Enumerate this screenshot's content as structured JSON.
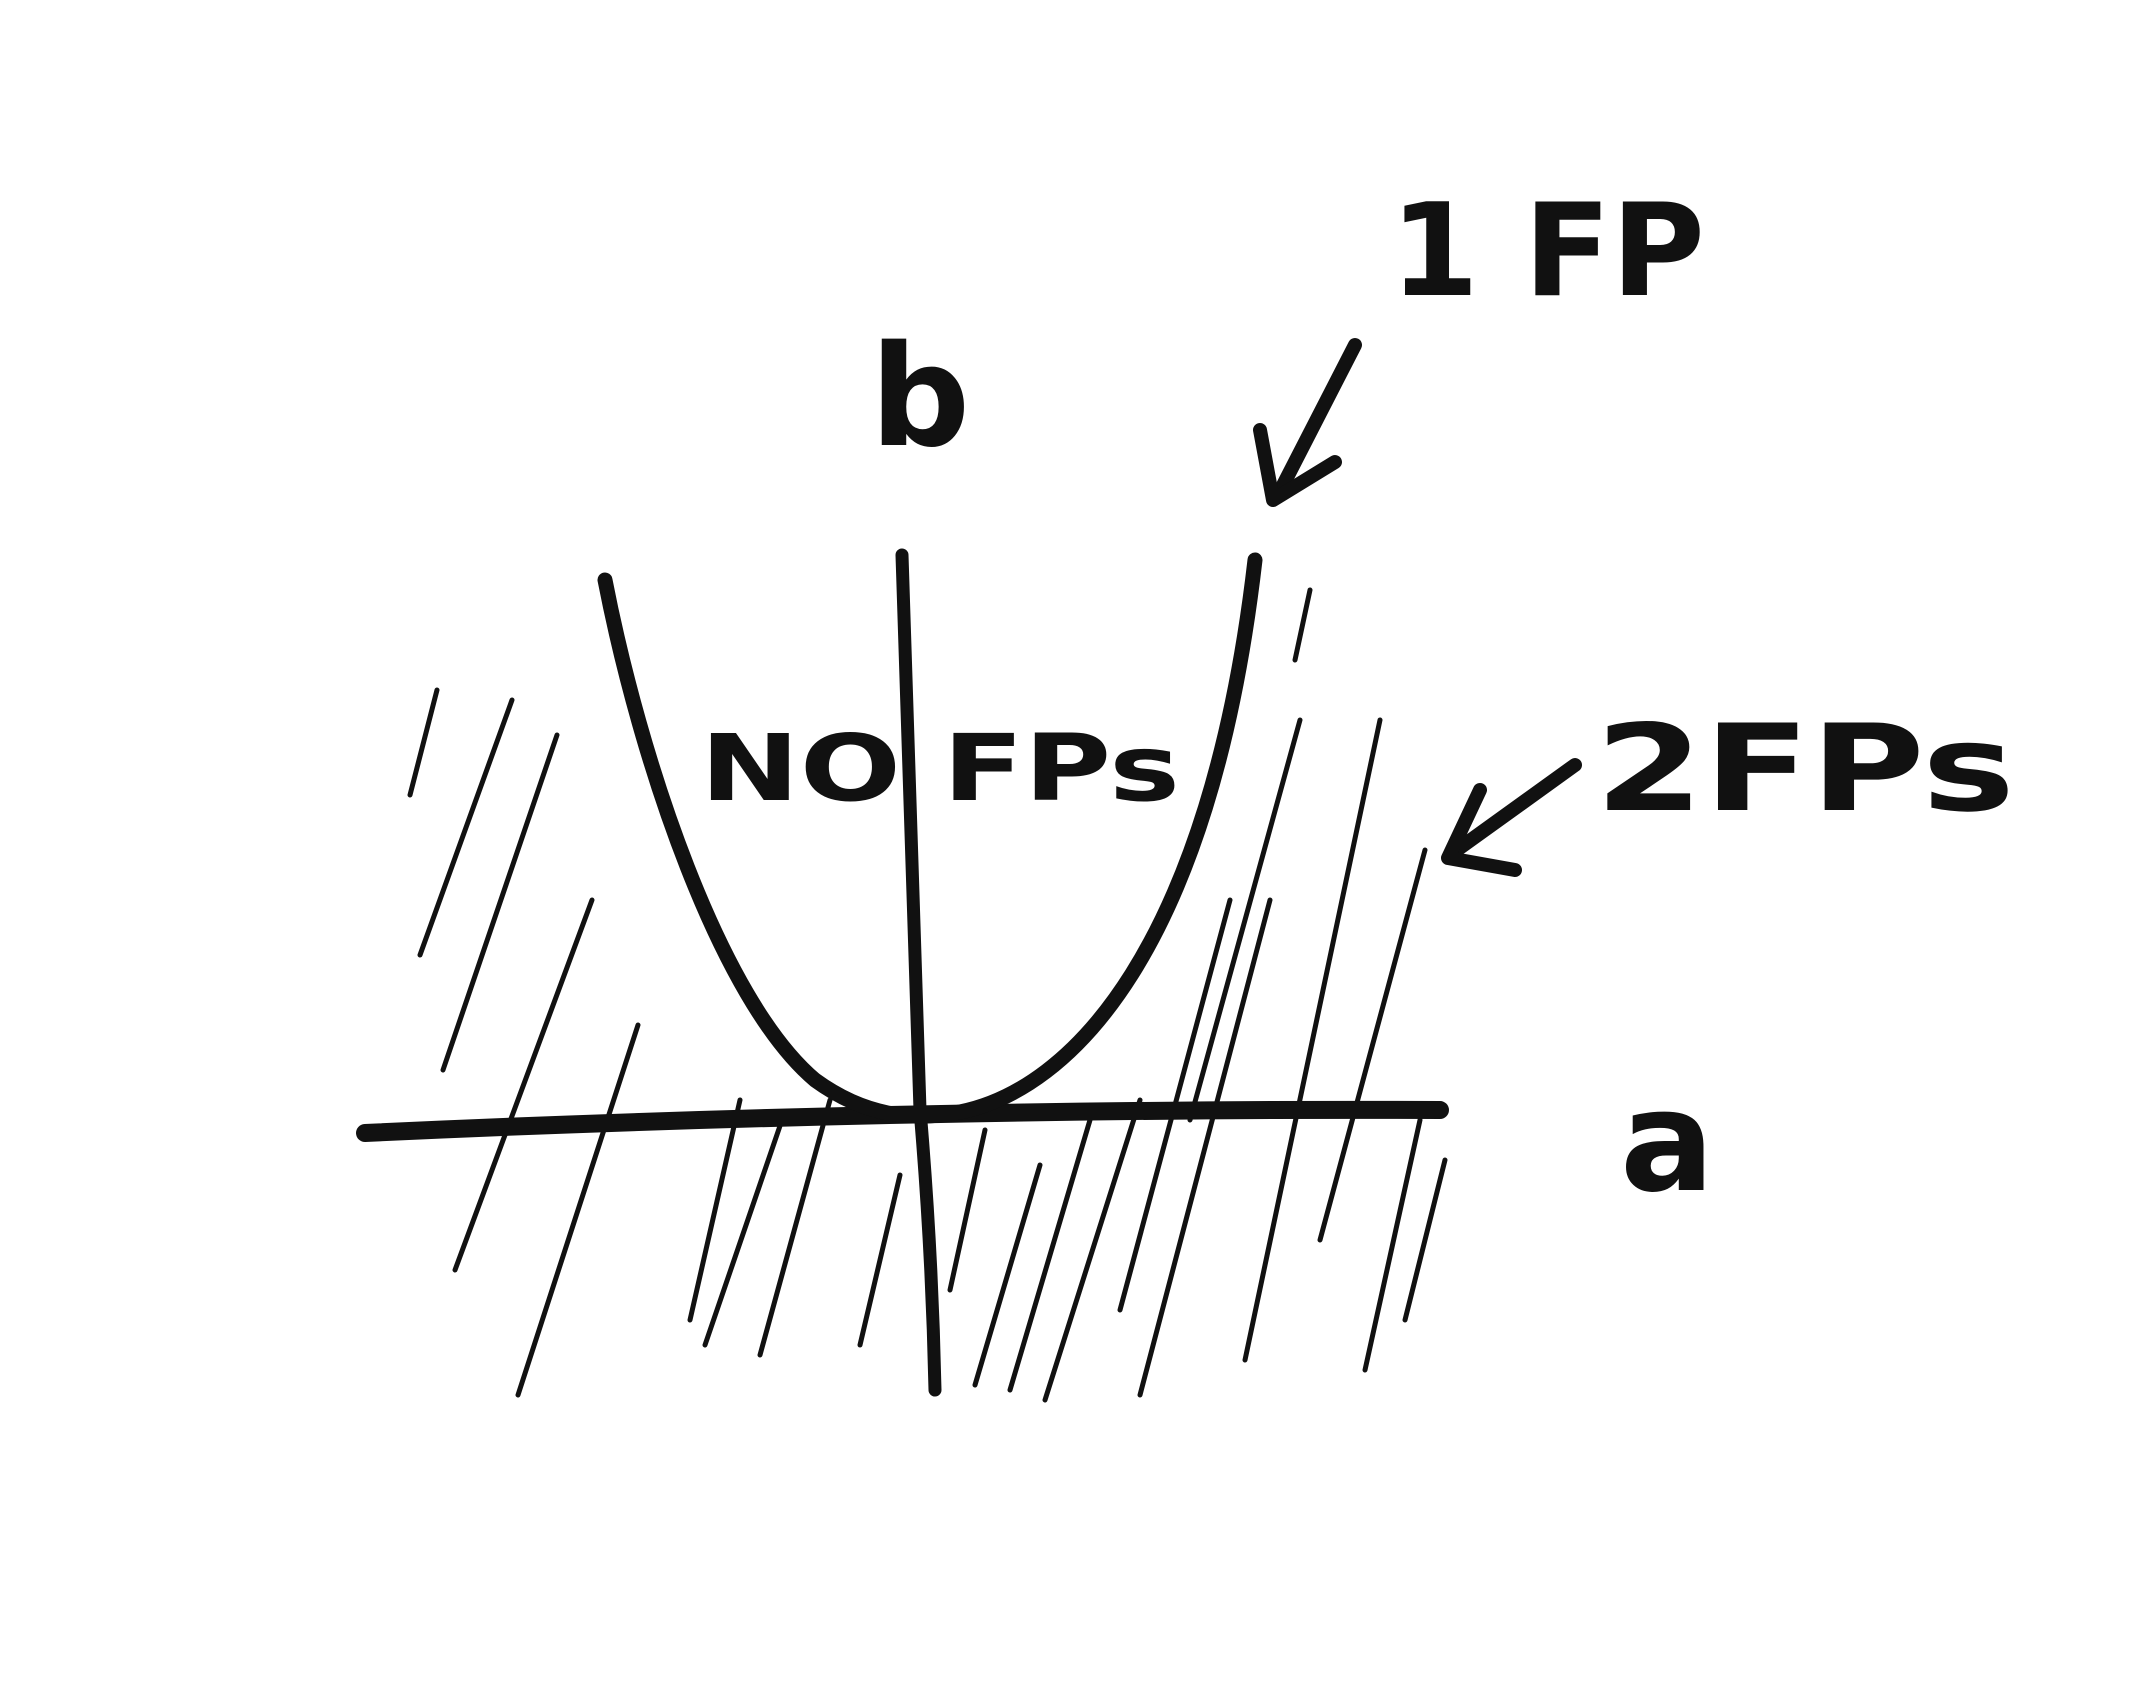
{
  "diagram": {
    "axis_labels": {
      "horizontal": "a",
      "vertical": "b"
    },
    "regions": [
      {
        "id": "inside-parabola",
        "label": "NO FPs"
      },
      {
        "id": "parabola-boundary",
        "label": "1 FP"
      },
      {
        "id": "hatched-outside",
        "label": "2FPs"
      }
    ],
    "hatch_note": "diagonal hatching fills the region outside the parabola",
    "ink_color": "#111111",
    "background_color": "#ffffff"
  }
}
